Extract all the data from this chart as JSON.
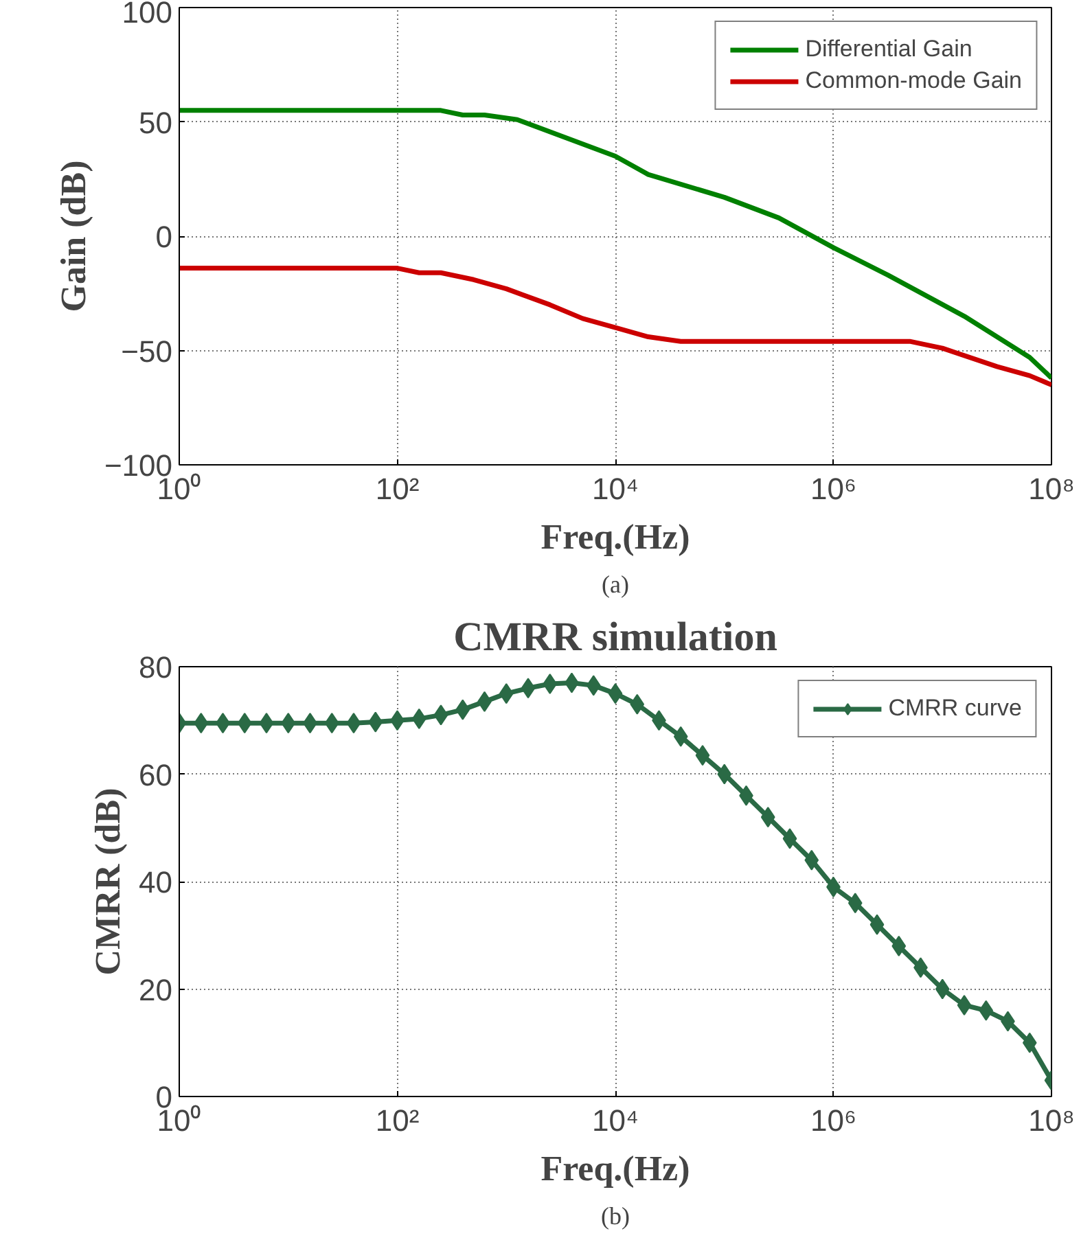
{
  "chart_data": [
    {
      "type": "line",
      "xlabel": "Freq.(Hz)",
      "ylabel": "Gain (dB)",
      "annotations": [
        "(a)"
      ],
      "log": "x",
      "grid": true,
      "legend": "top right",
      "line_style": "solid",
      "xlim": [
        1,
        100000000
      ],
      "ylim": [
        -100,
        100
      ],
      "xticks": [
        {
          "value": 1,
          "label": "10⁰"
        },
        {
          "value": 100,
          "label": "10²"
        },
        {
          "value": 10000,
          "label": "10⁴"
        },
        {
          "value": 1000000,
          "label": "10⁶"
        },
        {
          "value": 100000000,
          "label": "10⁸"
        }
      ],
      "yticks": [
        -100,
        -50,
        0,
        50,
        100
      ],
      "series": [
        {
          "name": "Differential Gain",
          "color": "#008000",
          "x": [
            1,
            251,
            398,
            631,
            1259,
            10000,
            20000,
            100000,
            316000,
            1000000,
            3160000,
            15850000,
            63100000,
            100000000
          ],
          "values": [
            55,
            55,
            53,
            53,
            51,
            35,
            27,
            17,
            8,
            -5,
            -17,
            -35,
            -53,
            -62
          ]
        },
        {
          "name": "Common-mode Gain",
          "color": "#cc0000",
          "x": [
            1,
            100,
            158.5,
            251,
            501,
            1000,
            2512,
            5012,
            10000,
            20000,
            39800,
            5012000,
            10000000,
            31600000,
            63100000,
            100000000
          ],
          "values": [
            -14,
            -14,
            -16,
            -16,
            -19,
            -23,
            -30,
            -36,
            -40,
            -44,
            -46,
            -46,
            -49,
            -57,
            -61,
            -65
          ]
        }
      ]
    },
    {
      "type": "line",
      "title": "CMRR simulation",
      "xlabel": "Freq.(Hz)",
      "ylabel": "CMRR (dB)",
      "annotations": [
        "(b)"
      ],
      "log": "x",
      "grid": true,
      "legend": "top right",
      "marker": "diamond",
      "line_style": "solid",
      "xlim": [
        1,
        100000000
      ],
      "ylim": [
        0,
        80
      ],
      "xticks": [
        {
          "value": 1,
          "label": "10⁰"
        },
        {
          "value": 100,
          "label": "10²"
        },
        {
          "value": 10000,
          "label": "10⁴"
        },
        {
          "value": 1000000,
          "label": "10⁶"
        },
        {
          "value": 100000000,
          "label": "10⁸"
        }
      ],
      "yticks": [
        0,
        20,
        40,
        60,
        80
      ],
      "series": [
        {
          "name": "CMRR curve",
          "color": "#2a6a45",
          "x": [
            1,
            1.585,
            2.512,
            3.981,
            6.31,
            10,
            15.85,
            25.12,
            39.81,
            63.1,
            100,
            158.5,
            251.2,
            398.1,
            631,
            1000,
            1585,
            2512,
            3981,
            6310,
            10000,
            15850,
            25120,
            39810,
            63100,
            100000,
            158500,
            251200,
            398100,
            631000,
            1000000,
            1585000,
            2512000,
            3981000,
            6310000,
            10000000,
            15850000,
            25120000,
            39810000,
            63100000,
            100000000
          ],
          "values": [
            69.5,
            69.5,
            69.5,
            69.5,
            69.5,
            69.5,
            69.5,
            69.5,
            69.5,
            69.7,
            70,
            70.3,
            71,
            72,
            73.5,
            75,
            76,
            76.8,
            77,
            76.5,
            75,
            73,
            70,
            67,
            63.5,
            60,
            56,
            52,
            48,
            44,
            39,
            36,
            32,
            28,
            24,
            20,
            17,
            16,
            14,
            10,
            3
          ]
        }
      ]
    }
  ]
}
